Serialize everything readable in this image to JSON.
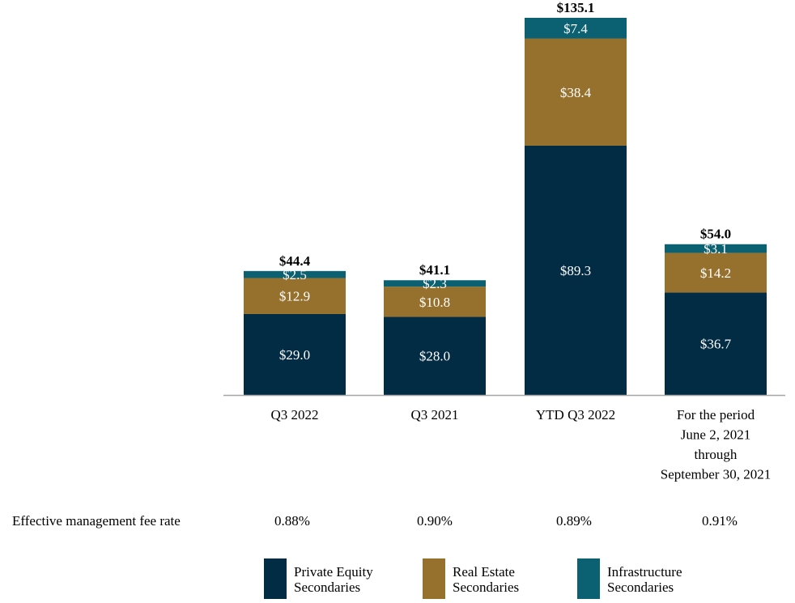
{
  "chart_data": {
    "type": "bar",
    "stacked": true,
    "categories": [
      [
        "Q3 2022"
      ],
      [
        "Q3 2021"
      ],
      [
        "YTD Q3 2022"
      ],
      [
        "For the period",
        "June 2, 2021",
        "through",
        "September 30, 2021"
      ]
    ],
    "series": [
      {
        "name": [
          "Private Equity",
          "Secondaries"
        ],
        "color": "#022b44",
        "values": [
          29.0,
          28.0,
          89.3,
          36.7
        ],
        "labels": [
          "$29.0",
          "$28.0",
          "$89.3",
          "$36.7"
        ]
      },
      {
        "name": [
          "Real Estate",
          "Secondaries"
        ],
        "color": "#96712d",
        "values": [
          12.9,
          10.8,
          38.4,
          14.2
        ],
        "labels": [
          "$12.9",
          "$10.8",
          "$38.4",
          "$14.2"
        ]
      },
      {
        "name": [
          "Infrastructure",
          "Secondaries"
        ],
        "color": "#0b6072",
        "values": [
          2.5,
          2.3,
          7.4,
          3.1
        ],
        "labels": [
          "$2.5",
          "$2.3",
          "$7.4",
          "$3.1"
        ]
      }
    ],
    "totals": [
      "$44.4",
      "$41.1",
      "$135.1",
      "$54.0"
    ],
    "ylim": [
      0,
      135.1
    ],
    "grid": false,
    "legend": "bottom",
    "fee_rate": {
      "label": "Effective management fee rate",
      "values": [
        "0.88%",
        "0.90%",
        "0.89%",
        "0.91%"
      ]
    }
  }
}
